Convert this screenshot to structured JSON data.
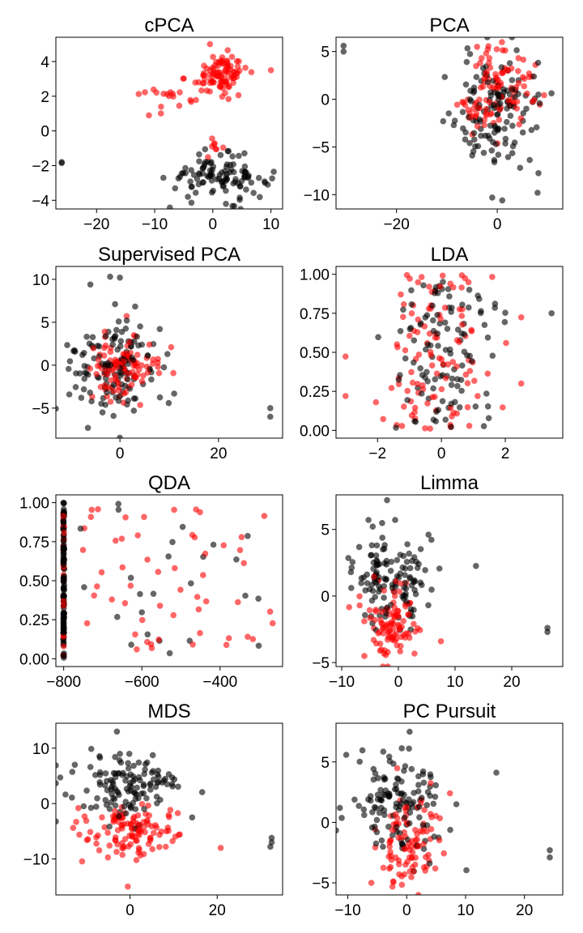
{
  "colors": {
    "group_a": "#000000",
    "group_b": "#ff0000",
    "point_opacity": 0.6
  },
  "chart_data": [
    {
      "type": "scatter",
      "title": "cPCA",
      "xlim": [
        -27,
        12
      ],
      "ylim": [
        -4.5,
        5.4
      ],
      "xticks": [
        -20,
        -10,
        0,
        10
      ],
      "yticks": [
        -4,
        -2,
        0,
        2,
        4
      ],
      "clusters": [
        {
          "group": "group_b",
          "cx": 1.5,
          "cy": 3.3,
          "sx": 2.2,
          "sy": 0.55,
          "n": 95
        },
        {
          "group": "group_b",
          "cx": -6.5,
          "cy": 2.0,
          "sx": 2.6,
          "sy": 0.5,
          "n": 20
        },
        {
          "group": "group_b",
          "cx": 1.0,
          "cy": -0.9,
          "sx": 0.7,
          "sy": 0.3,
          "n": 8
        },
        {
          "group": "group_a",
          "cx": 1.0,
          "cy": -2.7,
          "sx": 4.3,
          "sy": 0.6,
          "n": 110
        }
      ],
      "points": [
        {
          "group": "group_a",
          "x": -26,
          "y": -1.8
        },
        {
          "group": "group_a",
          "x": -26,
          "y": -1.85
        },
        {
          "group": "group_b",
          "x": -0.5,
          "y": 5.0
        },
        {
          "group": "group_b",
          "x": -11,
          "y": 0.9
        },
        {
          "group": "group_b",
          "x": 10,
          "y": 3.5
        }
      ]
    },
    {
      "type": "scatter",
      "title": "PCA",
      "xlim": [
        -32,
        13
      ],
      "ylim": [
        -11.5,
        6.5
      ],
      "xticks": [
        -20,
        0
      ],
      "yticks": [
        -10,
        -5,
        0,
        5
      ],
      "clusters": [
        {
          "group": "group_a",
          "cx": 0,
          "cy": -1.5,
          "sx": 4.5,
          "sy": 3.2,
          "n": 130
        },
        {
          "group": "group_b",
          "cx": 1.5,
          "cy": 1.5,
          "sx": 3.2,
          "sy": 2.2,
          "n": 90
        },
        {
          "group": "group_b",
          "cx": -4,
          "cy": -1.5,
          "sx": 2.5,
          "sy": 1.5,
          "n": 20
        }
      ],
      "points": [
        {
          "group": "group_a",
          "x": -30.5,
          "y": 5.6
        },
        {
          "group": "group_a",
          "x": -30.5,
          "y": 5.0
        },
        {
          "group": "group_a",
          "x": -1,
          "y": -10.3
        },
        {
          "group": "group_a",
          "x": 1,
          "y": -10.6
        },
        {
          "group": "group_a",
          "x": 8,
          "y": -9.8
        },
        {
          "group": "group_b",
          "x": -4,
          "y": 5.5
        }
      ]
    },
    {
      "type": "scatter",
      "title": "Supervised PCA",
      "xlim": [
        -13,
        33
      ],
      "ylim": [
        -8.5,
        11.5
      ],
      "xticks": [
        0,
        20
      ],
      "yticks": [
        -5,
        0,
        5,
        10
      ],
      "clusters": [
        {
          "group": "group_a",
          "cx": -2,
          "cy": -0.5,
          "sx": 4.5,
          "sy": 2.8,
          "n": 130
        },
        {
          "group": "group_b",
          "cx": 0.5,
          "cy": -0.3,
          "sx": 3.5,
          "sy": 2.0,
          "n": 110
        }
      ],
      "points": [
        {
          "group": "group_a",
          "x": 30.5,
          "y": -5.0
        },
        {
          "group": "group_a",
          "x": 30.5,
          "y": -6.0
        },
        {
          "group": "group_a",
          "x": -6,
          "y": 9.4
        },
        {
          "group": "group_a",
          "x": -2,
          "y": 10.3
        },
        {
          "group": "group_a",
          "x": 0,
          "y": 10.2
        },
        {
          "group": "group_a",
          "x": -6.5,
          "y": -7.3
        }
      ]
    },
    {
      "type": "scatter",
      "title": "LDA",
      "xlim": [
        -3.3,
        3.8
      ],
      "ylim": [
        -0.05,
        1.05
      ],
      "xticks": [
        -2,
        0,
        2
      ],
      "yticks": [
        0.0,
        0.25,
        0.5,
        0.75,
        1.0
      ],
      "uniform": [
        {
          "group": "group_a",
          "xmin": -2.0,
          "xmax": 2.0,
          "ymin": 0.0,
          "ymax": 1.0,
          "n": 110,
          "xcenter": 0.0,
          "xsd": 0.8
        },
        {
          "group": "group_b",
          "xmin": -3.0,
          "xmax": 2.5,
          "ymin": 0.0,
          "ymax": 1.0,
          "n": 110,
          "xcenter": 0.0,
          "xsd": 1.0
        }
      ],
      "points": [
        {
          "group": "group_a",
          "x": 3.45,
          "y": 0.75
        },
        {
          "group": "group_b",
          "x": -3.0,
          "y": 0.22
        }
      ]
    },
    {
      "type": "scatter",
      "title": "QDA",
      "xlim": [
        -820,
        -240
      ],
      "ylim": [
        -0.05,
        1.05
      ],
      "xticks": [
        -800,
        -600,
        -400
      ],
      "yticks": [
        0.0,
        0.25,
        0.5,
        0.75,
        1.0
      ],
      "column": [
        {
          "group": "group_a",
          "x": -800,
          "ymin": 0.0,
          "ymax": 1.0,
          "n": 120
        },
        {
          "group": "group_b",
          "x": -800,
          "ymin": 0.0,
          "ymax": 1.0,
          "n": 25
        }
      ],
      "uniform": [
        {
          "group": "group_b",
          "xmin": -760,
          "xmax": -260,
          "ymin": 0.0,
          "ymax": 1.0,
          "n": 55
        },
        {
          "group": "group_a",
          "xmin": -760,
          "xmax": -300,
          "ymin": 0.0,
          "ymax": 1.0,
          "n": 25
        }
      ],
      "points": []
    },
    {
      "type": "scatter",
      "title": "Limma",
      "xlim": [
        -11,
        29
      ],
      "ylim": [
        -5.3,
        7.6
      ],
      "xticks": [
        -10,
        0,
        10,
        20
      ],
      "yticks": [
        -5,
        0,
        5
      ],
      "clusters": [
        {
          "group": "group_a",
          "cx": -1.5,
          "cy": 1.3,
          "sx": 4.0,
          "sy": 1.7,
          "n": 130
        },
        {
          "group": "group_b",
          "cx": -1.5,
          "cy": -1.8,
          "sx": 2.2,
          "sy": 1.5,
          "n": 100
        }
      ],
      "points": [
        {
          "group": "group_a",
          "x": 26.3,
          "y": -2.4
        },
        {
          "group": "group_a",
          "x": 26.3,
          "y": -2.7
        },
        {
          "group": "group_a",
          "x": -2,
          "y": 7.2
        },
        {
          "group": "group_b",
          "x": -6,
          "y": -4.5
        },
        {
          "group": "group_b",
          "x": 7.5,
          "y": -3.4
        }
      ]
    },
    {
      "type": "scatter",
      "title": "MDS",
      "xlim": [
        -17,
        35
      ],
      "ylim": [
        -16.5,
        14.5
      ],
      "xticks": [
        0,
        20
      ],
      "yticks": [
        -10,
        0,
        10
      ],
      "clusters": [
        {
          "group": "group_a",
          "cx": -1,
          "cy": 3.5,
          "sx": 6.5,
          "sy": 3.0,
          "n": 130
        },
        {
          "group": "group_b",
          "cx": 0,
          "cy": -5.0,
          "sx": 5.5,
          "sy": 2.2,
          "n": 120
        }
      ],
      "points": [
        {
          "group": "group_a",
          "x": 32.5,
          "y": -6.2
        },
        {
          "group": "group_a",
          "x": 32.5,
          "y": -7.0
        },
        {
          "group": "group_a",
          "x": 32.2,
          "y": -7.8
        },
        {
          "group": "group_b",
          "x": -0.5,
          "y": -15.0
        },
        {
          "group": "group_a",
          "x": -3,
          "y": 13.0
        }
      ]
    },
    {
      "type": "scatter",
      "title": "PC Pursuit",
      "xlim": [
        -12,
        26.5
      ],
      "ylim": [
        -6,
        8.2
      ],
      "xticks": [
        -10,
        0,
        10,
        20
      ],
      "yticks": [
        -5,
        0,
        5
      ],
      "clusters": [
        {
          "group": "group_a",
          "cx": -1.5,
          "cy": 1.5,
          "sx": 4.5,
          "sy": 2.2,
          "n": 130
        },
        {
          "group": "group_b",
          "cx": 0,
          "cy": -1.8,
          "sx": 3.0,
          "sy": 2.0,
          "n": 100
        }
      ],
      "points": [
        {
          "group": "group_a",
          "x": 24.3,
          "y": -2.3
        },
        {
          "group": "group_a",
          "x": 24.3,
          "y": -2.9
        },
        {
          "group": "group_a",
          "x": 0.5,
          "y": 7.5
        },
        {
          "group": "group_b",
          "x": -6,
          "y": -5.0
        }
      ]
    }
  ]
}
